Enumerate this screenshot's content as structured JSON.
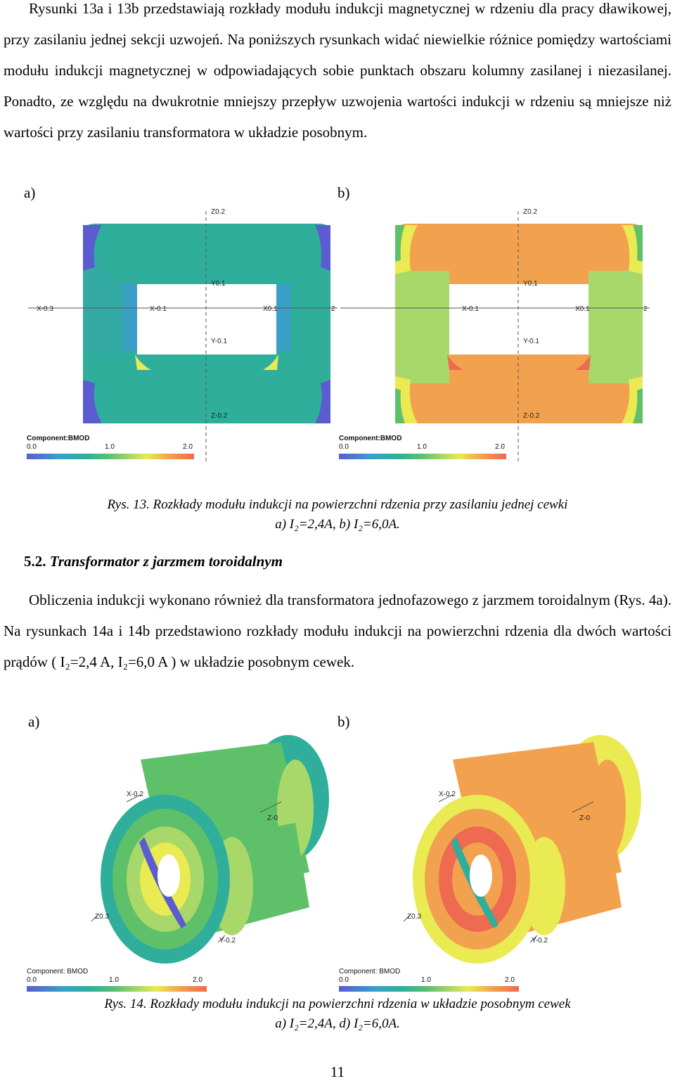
{
  "paragraph1": "Rysunki 13a i 13b przedstawiają rozkłady modułu indukcji magnetycznej w rdzeniu dla pracy dławikowej, przy zasilaniu jednej sekcji uzwojeń. Na poniższych rysunkach widać niewielkie różnice pomiędzy wartościami modułu indukcji magnetycznej w odpowiadających sobie punktach obszaru kolumny zasilanej i niezasilanej. Ponadto, ze względu na dwukrotnie mniejszy przepływ uzwojenia wartości indukcji w rdzeniu są mniejsze niż wartości przy zasilaniu transformatora w układzie posobnym.",
  "fig13": {
    "label_a": "a)",
    "label_b": "b)",
    "axes": {
      "z_top": "Z0.2",
      "z_bottom": "Z-0.2",
      "x_left": "X-0.3",
      "x_mid": "X-0.1",
      "x_right": "X0.1",
      "x_edge": "2",
      "y_top": "Y0.1",
      "y_bottom": "Y-0.1"
    },
    "colorbar": {
      "title": "Component:BMOD",
      "t0": "0.0",
      "t1": "1.0",
      "t2": "2.0"
    },
    "caption_main": "Rys. 13. Rozkłady modułu indukcji na powierzchni rdzenia przy zasilaniu jednej cewki",
    "caption_sub": "a) I₂=2,4A, b) I₂=6,0A."
  },
  "section": {
    "number": "5.2.",
    "title": "Transformator z jarzmem toroidalnym"
  },
  "paragraph2": "Obliczenia indukcji wykonano również dla transformatora jednofazowego z jarzmem toroidalnym (Rys. 4a). Na rysunkach 14a i 14b przedstawiono rozkłady modułu indukcji na powierzchni rdzenia dla dwóch wartości prądów ( I₂=2,4 A, I₂=6,0 A ) w układzie posobnym cewek.",
  "fig14": {
    "label_a": "a)",
    "label_b": "b)",
    "axes": {
      "x": "X-0.2",
      "z_right": "Z-0",
      "z_left": "Z0.3",
      "y": "Y-0.2"
    },
    "colorbar": {
      "title": "Component: BMOD",
      "t0": "0.0",
      "t1": "1.0",
      "t2": "2.0"
    },
    "caption_main": "Rys. 14. Rozkłady modułu indukcji na powierzchni rdzenia w układzie posobnym cewek",
    "caption_sub": "a) I₂=2,4A, d) I₂=6,0A."
  },
  "page_number": "11",
  "colors": {
    "low_blue": "#5a5cd0",
    "teal": "#2fae9c",
    "green": "#5fc06a",
    "lightgreen": "#a8d86a",
    "yellow": "#eaea52",
    "orange": "#f2a24e",
    "red": "#ee6a50"
  }
}
